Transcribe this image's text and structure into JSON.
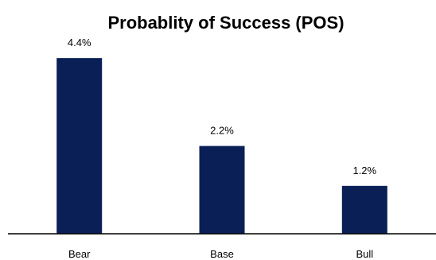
{
  "chart_data": {
    "type": "bar",
    "title": "Probablity of Success (POS)",
    "categories": [
      "Bear",
      "Base",
      "Bull"
    ],
    "values": [
      4.4,
      2.2,
      1.2
    ],
    "data_labels": [
      "4.4%",
      "2.2%",
      "1.2%"
    ],
    "unit": "%",
    "xlabel": "",
    "ylabel": "",
    "ylim": [
      0,
      4.9
    ],
    "grid": false,
    "legend": "none",
    "bar_color": "#0a1f56",
    "axis_color": "#000000"
  }
}
